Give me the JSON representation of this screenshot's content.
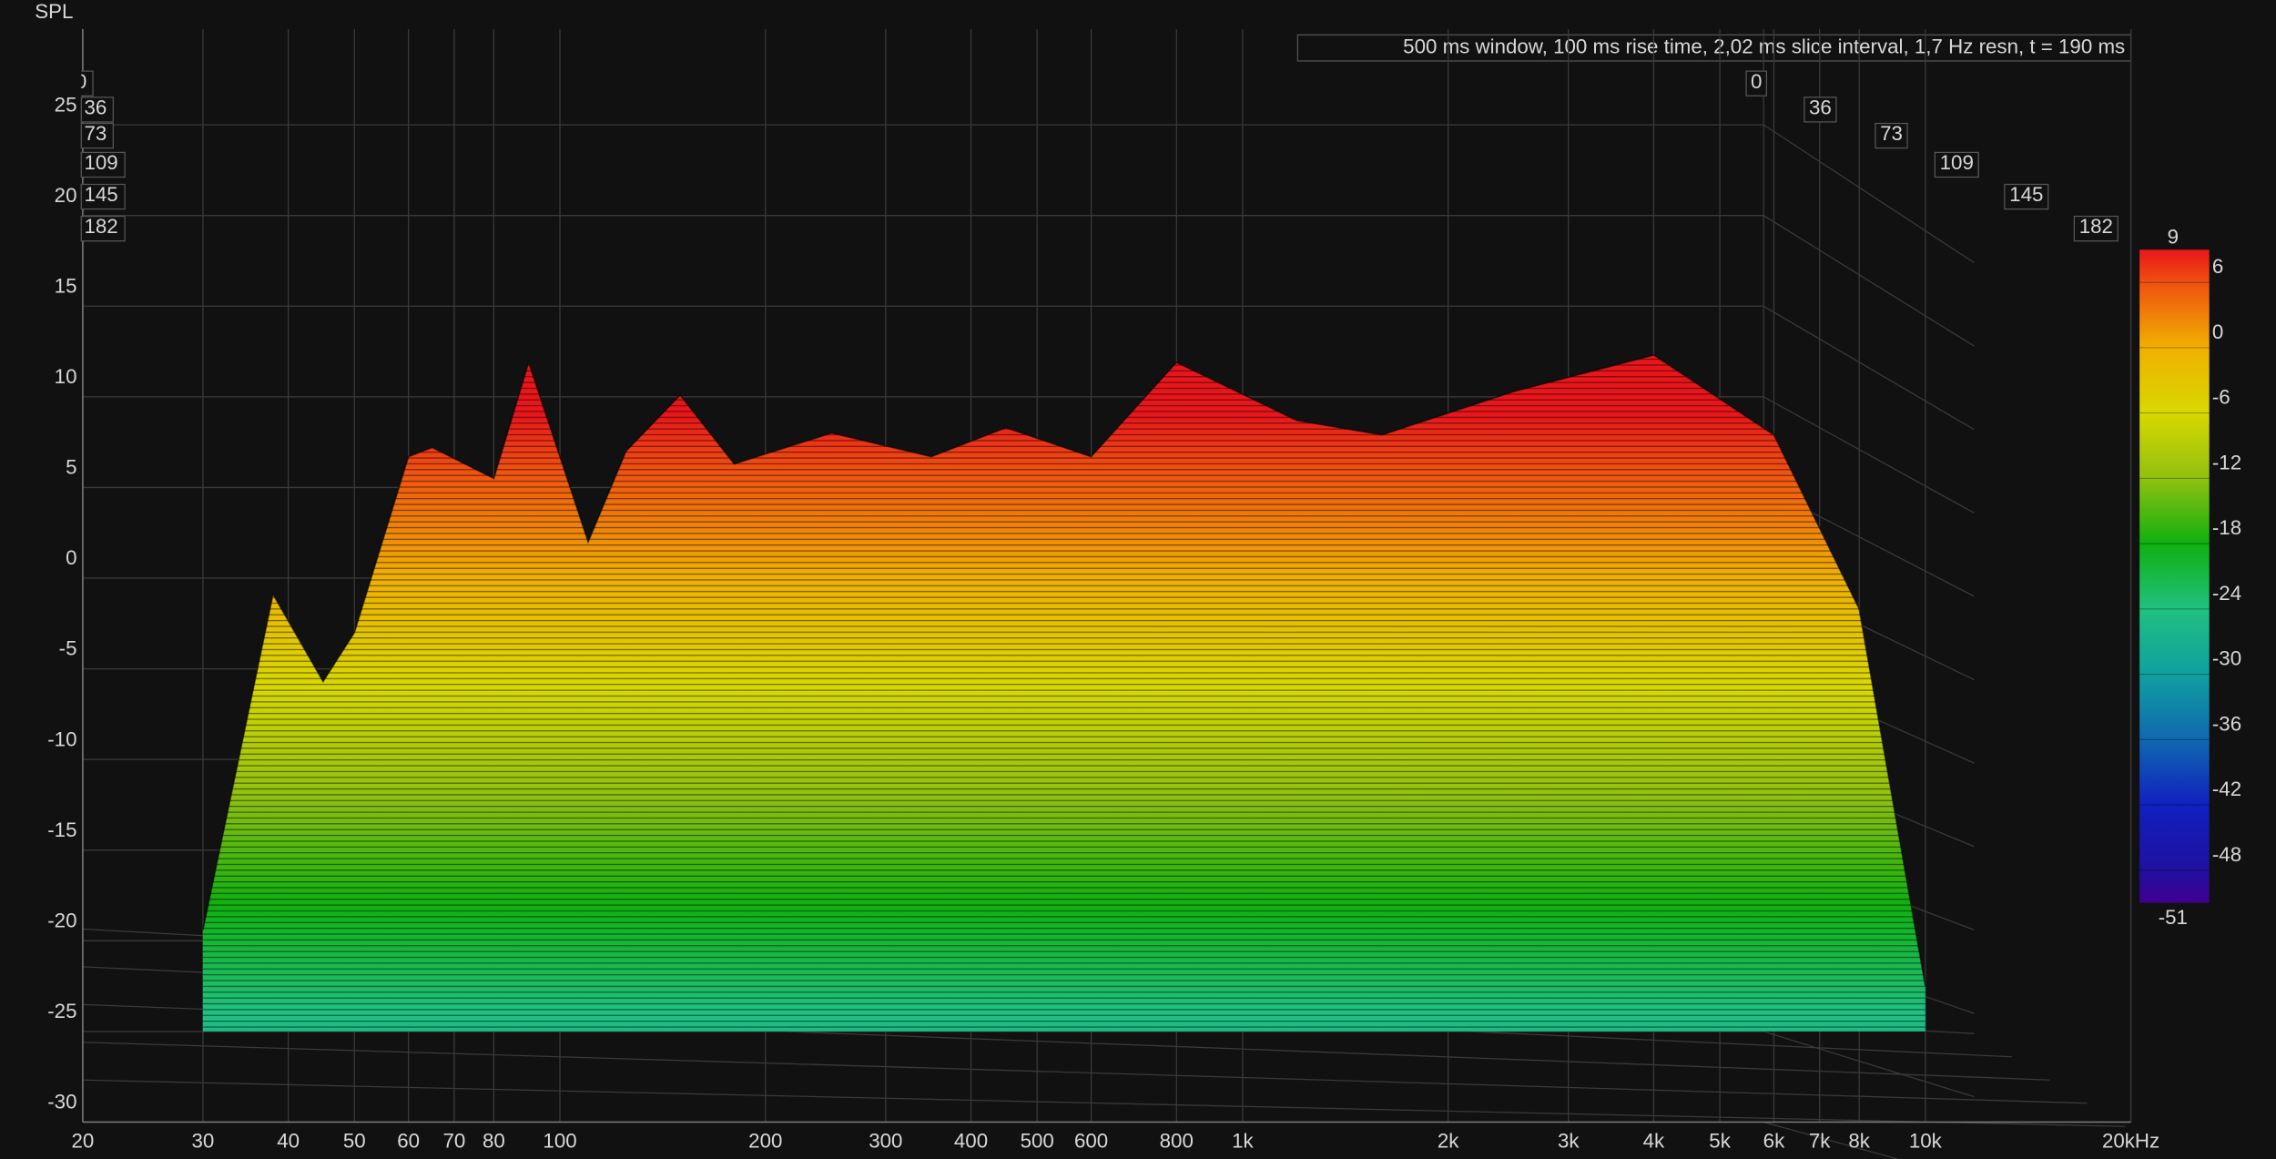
{
  "chart_data": {
    "type": "waterfall",
    "title": "500 ms window, 100 ms rise time, 2,02 ms slice interval, 1,7 Hz resn, t = 190 ms",
    "ylabel": "SPL",
    "xscale": "log",
    "xlim": [
      20,
      20000
    ],
    "xticks": [
      20,
      30,
      40,
      50,
      60,
      70,
      80,
      100,
      200,
      300,
      400,
      500,
      600,
      800,
      {
        "value": 1000,
        "label": "1k"
      },
      {
        "value": 2000,
        "label": "2k"
      },
      {
        "value": 3000,
        "label": "3k"
      },
      {
        "value": 4000,
        "label": "4k"
      },
      {
        "value": 5000,
        "label": "5k"
      },
      {
        "value": 6000,
        "label": "6k"
      },
      {
        "value": 7000,
        "label": "7k"
      },
      {
        "value": 8000,
        "label": "8k"
      },
      {
        "value": 10000,
        "label": "10k"
      },
      {
        "value": 20000,
        "label": "20kHz"
      }
    ],
    "ylim": [
      -30,
      25
    ],
    "yticks": [
      -30,
      -25,
      -20,
      -15,
      -10,
      -5,
      0,
      5,
      10,
      15,
      20,
      25
    ],
    "zticks": [
      0,
      36,
      73,
      109,
      145,
      182
    ],
    "grid": true,
    "x": [
      30,
      38,
      45,
      50,
      60,
      65,
      80,
      90,
      110,
      125,
      150,
      180,
      250,
      350,
      450,
      600,
      800,
      1200,
      1600,
      2500,
      4000,
      6000,
      8000,
      10000
    ],
    "values": [
      -19.4,
      -0.9,
      -5.7,
      -3,
      6.7,
      7.2,
      5.5,
      11.9,
      2,
      7,
      10.1,
      6.3,
      8,
      6.7,
      8.3,
      6.7,
      11.9,
      8.7,
      7.9,
      10.3,
      12.3,
      7.9,
      -1.7,
      -22.5
    ],
    "colorbar": {
      "ticks": [
        9,
        6,
        0,
        -6,
        -12,
        -18,
        -24,
        -30,
        -36,
        -42,
        -48,
        -51
      ],
      "colors": [
        "#e8161b",
        "#f05010",
        "#f0b000",
        "#d8d800",
        "#90c010",
        "#10b010",
        "#20c080",
        "#10a0a0",
        "#1068b0",
        "#1020c0",
        "#2010a0",
        "#400090"
      ]
    }
  }
}
